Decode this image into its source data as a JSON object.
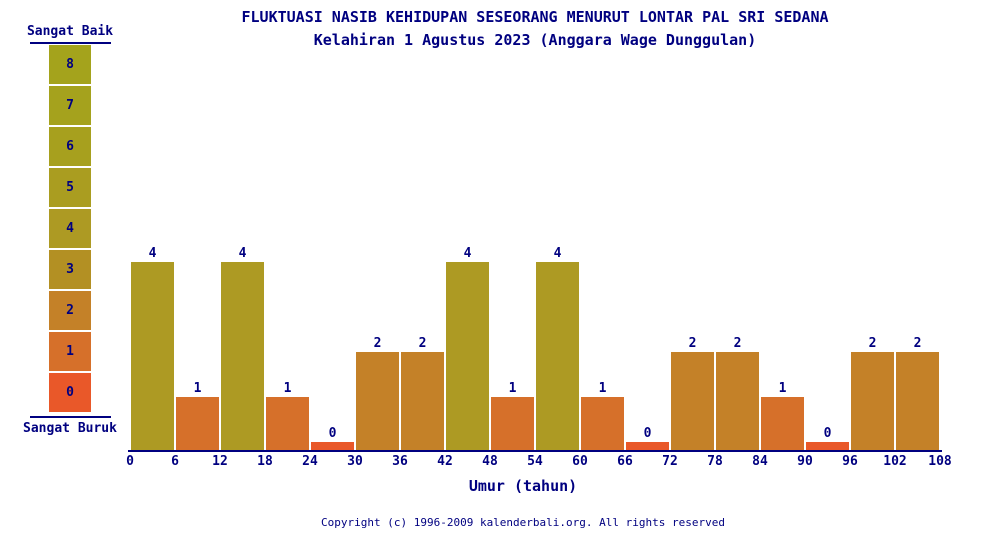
{
  "page": {
    "title": "FLUKTUASI NASIB KEHIDUPAN SESEORANG MENURUT LONTAR PAL SRI SEDANA",
    "subtitle": "Kelahiran 1 Agustus 2023 (Anggara Wage Dunggulan)",
    "copyright": "Copyright (c) 1996-2009 kalenderbali.org. All rights reserved"
  },
  "scale": {
    "top_label": "Sangat Baik",
    "bottom_label": "Sangat Buruk",
    "levels": [
      8,
      7,
      6,
      5,
      4,
      3,
      2,
      1,
      0
    ]
  },
  "colors": {
    "text": "#000080",
    "axis": "#000080",
    "background": "#ffffff",
    "by_value": {
      "0": "#e95829",
      "1": "#d6702a",
      "2": "#c48128",
      "3": "#b39023",
      "4": "#ad9a23",
      "5": "#aa9d20",
      "6": "#a7a01e",
      "7": "#a5a21d",
      "8": "#a4a31c"
    }
  },
  "chart_data": {
    "type": "bar",
    "title": "FLUKTUASI NASIB KEHIDUPAN SESEORANG MENURUT LONTAR PAL SRI SEDANA",
    "subtitle": "Kelahiran 1 Agustus 2023 (Anggara Wage Dunggulan)",
    "xlabel": "Umur (tahun)",
    "ylabel": "",
    "categories": [
      "0-6",
      "6-12",
      "12-18",
      "18-24",
      "24-30",
      "30-36",
      "36-42",
      "42-48",
      "48-54",
      "54-60",
      "60-66",
      "66-72",
      "72-78",
      "78-84",
      "84-90",
      "90-96",
      "96-102",
      "102-108"
    ],
    "values": [
      4,
      1,
      4,
      1,
      0,
      2,
      2,
      4,
      1,
      4,
      1,
      0,
      2,
      2,
      1,
      0,
      2,
      2
    ],
    "x_ticks": [
      0,
      6,
      12,
      18,
      24,
      30,
      36,
      42,
      48,
      54,
      60,
      66,
      72,
      78,
      84,
      90,
      96,
      102,
      108
    ],
    "ylim": [
      0,
      8
    ],
    "value_labels_shown": true,
    "grid": false,
    "legend_position": "left",
    "legend_scale": {
      "max_label": "Sangat Baik",
      "min_label": "Sangat Buruk",
      "levels": [
        8,
        7,
        6,
        5,
        4,
        3,
        2,
        1,
        0
      ]
    }
  }
}
